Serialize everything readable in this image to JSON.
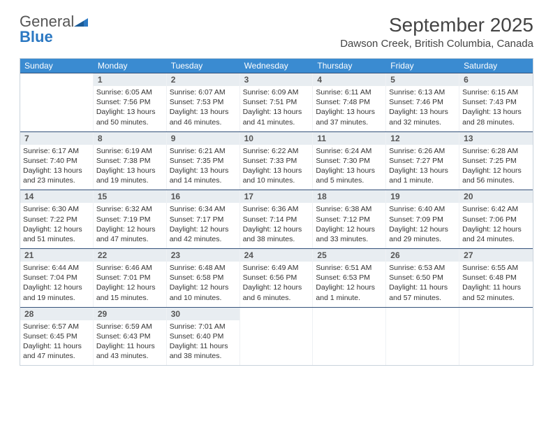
{
  "logo": {
    "textA": "General",
    "textB": "Blue"
  },
  "title": "September 2025",
  "location": "Dawson Creek, British Columbia, Canada",
  "colors": {
    "header_bg": "#3a8bd1",
    "week_divider": "#34517a",
    "daynum_bg": "#e8edf1",
    "border": "#c9d3dc",
    "logo_blue": "#2b78c2"
  },
  "dow": [
    "Sunday",
    "Monday",
    "Tuesday",
    "Wednesday",
    "Thursday",
    "Friday",
    "Saturday"
  ],
  "weeks": [
    [
      null,
      {
        "n": "1",
        "sr": "6:05 AM",
        "ss": "7:56 PM",
        "dl": "13 hours and 50 minutes."
      },
      {
        "n": "2",
        "sr": "6:07 AM",
        "ss": "7:53 PM",
        "dl": "13 hours and 46 minutes."
      },
      {
        "n": "3",
        "sr": "6:09 AM",
        "ss": "7:51 PM",
        "dl": "13 hours and 41 minutes."
      },
      {
        "n": "4",
        "sr": "6:11 AM",
        "ss": "7:48 PM",
        "dl": "13 hours and 37 minutes."
      },
      {
        "n": "5",
        "sr": "6:13 AM",
        "ss": "7:46 PM",
        "dl": "13 hours and 32 minutes."
      },
      {
        "n": "6",
        "sr": "6:15 AM",
        "ss": "7:43 PM",
        "dl": "13 hours and 28 minutes."
      }
    ],
    [
      {
        "n": "7",
        "sr": "6:17 AM",
        "ss": "7:40 PM",
        "dl": "13 hours and 23 minutes."
      },
      {
        "n": "8",
        "sr": "6:19 AM",
        "ss": "7:38 PM",
        "dl": "13 hours and 19 minutes."
      },
      {
        "n": "9",
        "sr": "6:21 AM",
        "ss": "7:35 PM",
        "dl": "13 hours and 14 minutes."
      },
      {
        "n": "10",
        "sr": "6:22 AM",
        "ss": "7:33 PM",
        "dl": "13 hours and 10 minutes."
      },
      {
        "n": "11",
        "sr": "6:24 AM",
        "ss": "7:30 PM",
        "dl": "13 hours and 5 minutes."
      },
      {
        "n": "12",
        "sr": "6:26 AM",
        "ss": "7:27 PM",
        "dl": "13 hours and 1 minute."
      },
      {
        "n": "13",
        "sr": "6:28 AM",
        "ss": "7:25 PM",
        "dl": "12 hours and 56 minutes."
      }
    ],
    [
      {
        "n": "14",
        "sr": "6:30 AM",
        "ss": "7:22 PM",
        "dl": "12 hours and 51 minutes."
      },
      {
        "n": "15",
        "sr": "6:32 AM",
        "ss": "7:19 PM",
        "dl": "12 hours and 47 minutes."
      },
      {
        "n": "16",
        "sr": "6:34 AM",
        "ss": "7:17 PM",
        "dl": "12 hours and 42 minutes."
      },
      {
        "n": "17",
        "sr": "6:36 AM",
        "ss": "7:14 PM",
        "dl": "12 hours and 38 minutes."
      },
      {
        "n": "18",
        "sr": "6:38 AM",
        "ss": "7:12 PM",
        "dl": "12 hours and 33 minutes."
      },
      {
        "n": "19",
        "sr": "6:40 AM",
        "ss": "7:09 PM",
        "dl": "12 hours and 29 minutes."
      },
      {
        "n": "20",
        "sr": "6:42 AM",
        "ss": "7:06 PM",
        "dl": "12 hours and 24 minutes."
      }
    ],
    [
      {
        "n": "21",
        "sr": "6:44 AM",
        "ss": "7:04 PM",
        "dl": "12 hours and 19 minutes."
      },
      {
        "n": "22",
        "sr": "6:46 AM",
        "ss": "7:01 PM",
        "dl": "12 hours and 15 minutes."
      },
      {
        "n": "23",
        "sr": "6:48 AM",
        "ss": "6:58 PM",
        "dl": "12 hours and 10 minutes."
      },
      {
        "n": "24",
        "sr": "6:49 AM",
        "ss": "6:56 PM",
        "dl": "12 hours and 6 minutes."
      },
      {
        "n": "25",
        "sr": "6:51 AM",
        "ss": "6:53 PM",
        "dl": "12 hours and 1 minute."
      },
      {
        "n": "26",
        "sr": "6:53 AM",
        "ss": "6:50 PM",
        "dl": "11 hours and 57 minutes."
      },
      {
        "n": "27",
        "sr": "6:55 AM",
        "ss": "6:48 PM",
        "dl": "11 hours and 52 minutes."
      }
    ],
    [
      {
        "n": "28",
        "sr": "6:57 AM",
        "ss": "6:45 PM",
        "dl": "11 hours and 47 minutes."
      },
      {
        "n": "29",
        "sr": "6:59 AM",
        "ss": "6:43 PM",
        "dl": "11 hours and 43 minutes."
      },
      {
        "n": "30",
        "sr": "7:01 AM",
        "ss": "6:40 PM",
        "dl": "11 hours and 38 minutes."
      },
      null,
      null,
      null,
      null
    ]
  ],
  "labels": {
    "sunrise": "Sunrise:",
    "sunset": "Sunset:",
    "daylight": "Daylight:"
  }
}
